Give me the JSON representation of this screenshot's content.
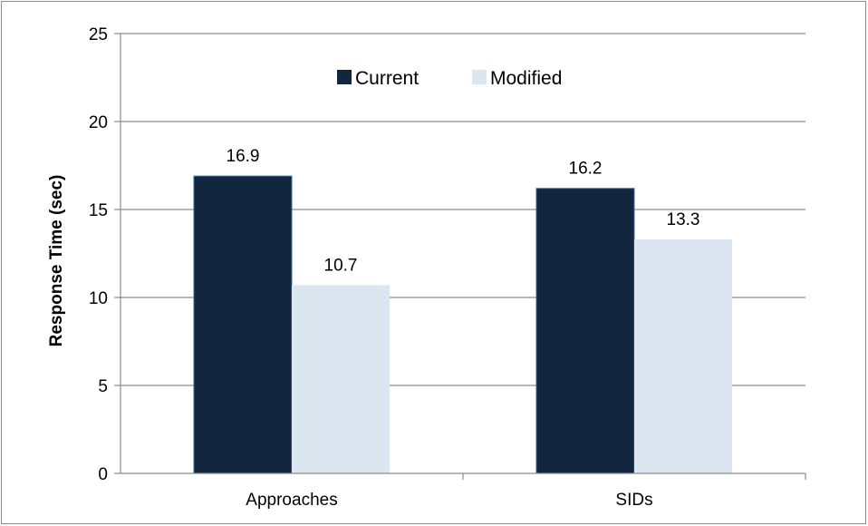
{
  "chart_data": {
    "type": "bar",
    "categories": [
      "Approaches",
      "SIDs"
    ],
    "series": [
      {
        "name": "Current",
        "values": [
          16.9,
          16.2
        ],
        "color": "#12263f"
      },
      {
        "name": "Modified",
        "values": [
          10.7,
          13.3
        ],
        "color": "#dce6f1"
      }
    ],
    "data_labels": [
      [
        "16.9",
        "16.2"
      ],
      [
        "10.7",
        "13.3"
      ]
    ],
    "title": "",
    "xlabel": "",
    "ylabel": "Response Time (sec)",
    "ylim": [
      0,
      25
    ],
    "yticks": [
      0,
      5,
      10,
      15,
      20,
      25
    ],
    "grid": true,
    "legend_position": "top-center"
  }
}
